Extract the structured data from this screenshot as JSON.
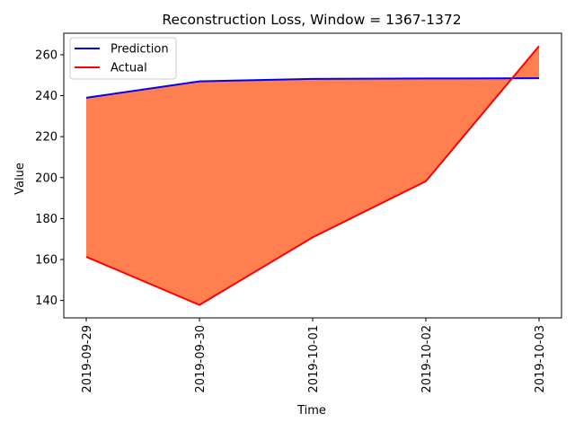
{
  "chart_data": {
    "type": "area",
    "title": "Reconstruction Loss, Window = 1367-1372",
    "xlabel": "Time",
    "ylabel": "Value",
    "x": [
      "2019-09-29",
      "2019-09-30",
      "2019-10-01",
      "2019-10-02",
      "2019-10-03"
    ],
    "yticks": [
      140,
      160,
      180,
      200,
      220,
      240,
      260
    ],
    "ylim": [
      131.5,
      270.5
    ],
    "grid": false,
    "legend_position": "upper-left",
    "fill_between": {
      "color": "#ff7f50",
      "between": [
        "Prediction",
        "Actual"
      ]
    },
    "series": [
      {
        "name": "Prediction",
        "color": "#0000ff",
        "values": [
          239.0,
          247.0,
          248.2,
          248.4,
          248.5
        ]
      },
      {
        "name": "Actual",
        "color": "#ff0000",
        "values": [
          161.3,
          137.8,
          170.8,
          198.2,
          264.2
        ]
      }
    ]
  }
}
